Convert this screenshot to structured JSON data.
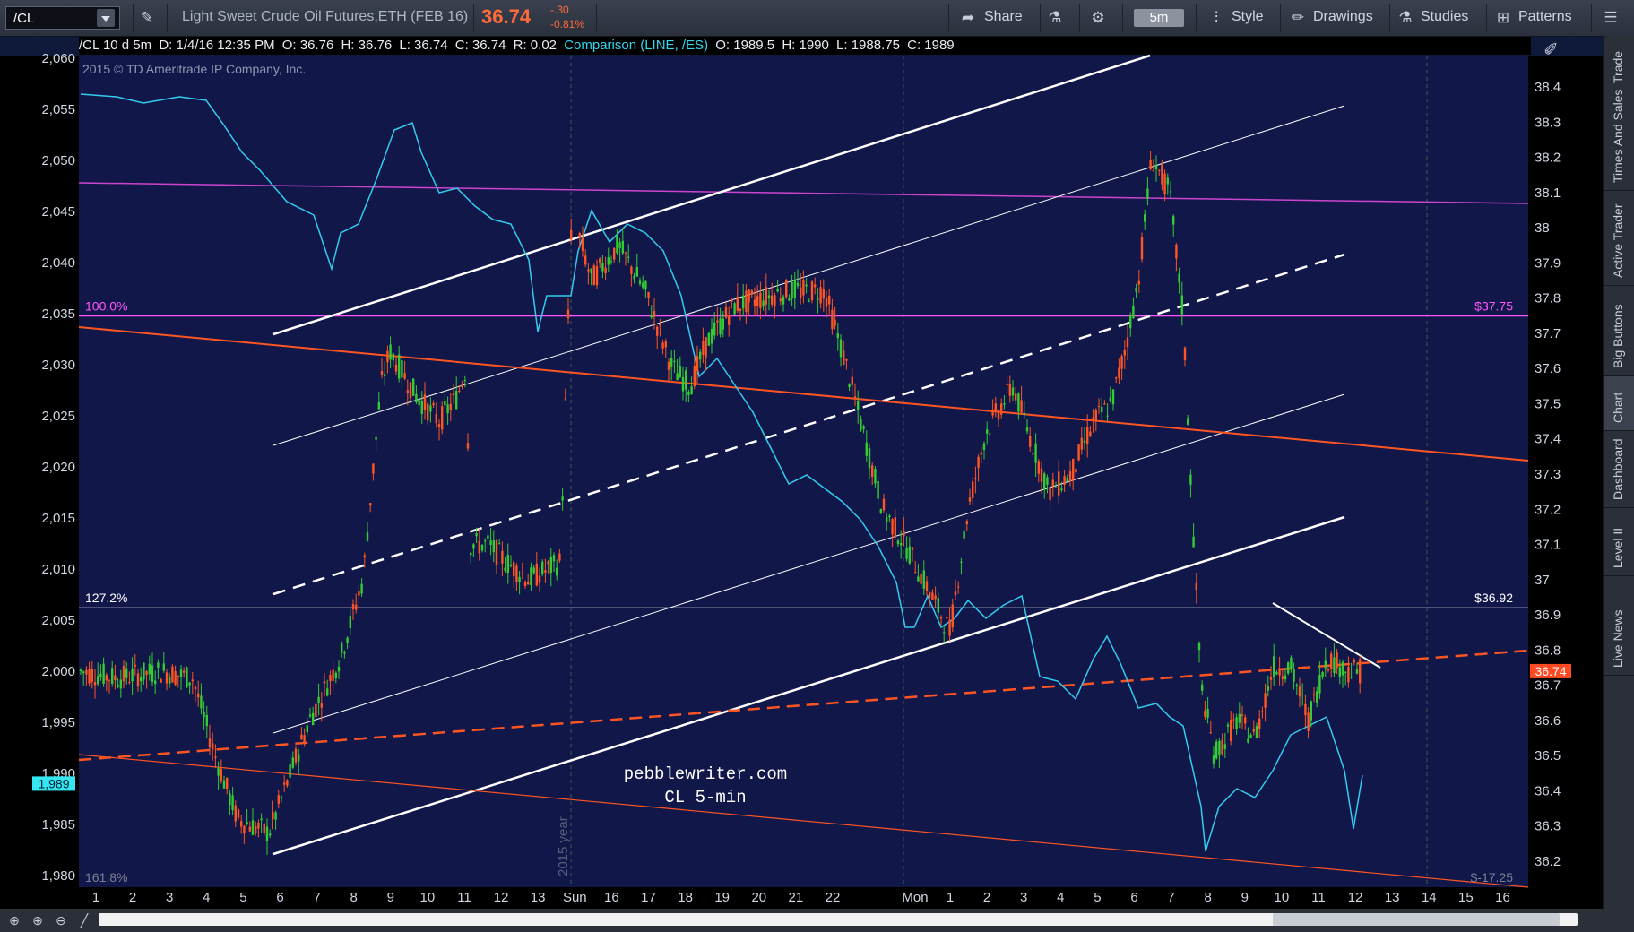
{
  "toolbar": {
    "symbol": "/CL",
    "description": "Light Sweet Crude Oil Futures,ETH (FEB 16)",
    "last_price": "36.74",
    "net_change": "-.30",
    "pct_change": "-0.81%",
    "share_label": "Share",
    "timeframe": "5m",
    "style_label": "Style",
    "drawings_label": "Drawings",
    "studies_label": "Studies",
    "patterns_label": "Patterns",
    "icons": [
      "pencil-icon",
      "flask-icon",
      "gear-icon",
      "share-icon",
      "menu-icon"
    ]
  },
  "infobar": {
    "symbol": "/CL 10 d 5m",
    "date": "D: 1/4/16 12:35 PM",
    "open": "O: 36.76",
    "high": "H: 36.76",
    "low": "L: 36.74",
    "close": "C: 36.74",
    "range": "R: 0.02",
    "comparison": "Comparison (LINE, /ES)",
    "cmp_open": "O: 1989.5",
    "cmp_high": "H: 1990",
    "cmp_low": "L: 1988.75",
    "cmp_close": "C: 1989"
  },
  "right_rail": {
    "tabs": [
      "Trade",
      "Times And Sales",
      "Active Trader",
      "Big Buttons",
      "Chart",
      "Dashboard",
      "Level II",
      "Live News"
    ],
    "active": "Chart"
  },
  "chart_data": {
    "type": "candlestick",
    "copyright": "2015 © TD Ameritrade IP Company, Inc.",
    "watermark_line1": "pebblewriter.com",
    "watermark_line2": "CL 5-min",
    "year_marker": "2015 year",
    "right_axis": {
      "ticks": [
        "38.4",
        "38.3",
        "38.2",
        "38.1",
        "38",
        "37.9",
        "37.8",
        "37.7",
        "37.6",
        "37.5",
        "37.4",
        "37.3",
        "37.2",
        "37.1",
        "37",
        "36.9",
        "36.8",
        "36.7",
        "36.6",
        "36.5",
        "36.4",
        "36.3",
        "36.2"
      ]
    },
    "left_axis": {
      "ticks": [
        "2,060",
        "2,055",
        "2,050",
        "2,045",
        "2,040",
        "2,035",
        "2,030",
        "2,025",
        "2,020",
        "2,015",
        "2,010",
        "2,005",
        "2,000",
        "1,995",
        "1,990",
        "1,985",
        "1,980"
      ]
    },
    "x_axis": {
      "ticks": [
        "1",
        "2",
        "3",
        "4",
        "5",
        "6",
        "7",
        "8",
        "9",
        "10",
        "11",
        "12",
        "13",
        "Sun",
        "16",
        "17",
        "18",
        "19",
        "20",
        "21",
        "22",
        "Mon",
        "1",
        "2",
        "3",
        "4",
        "5",
        "6",
        "7",
        "8",
        "9",
        "10",
        "11",
        "12",
        "13",
        "14",
        "15",
        "16"
      ]
    },
    "levels": [
      {
        "label_left": "100.0%",
        "label_right": "$37.75",
        "price": 37.75,
        "color": "#ff55ff"
      },
      {
        "label_left": "127.2%",
        "label_right": "$36.92",
        "price": 36.92,
        "color": "#ffffff"
      },
      {
        "label_left": "161.8%",
        "label_right": "$-17.25",
        "price": null,
        "color": "#ff6a3c"
      }
    ],
    "current_price_label": "36.74",
    "comparison_price_label": "1,989",
    "colors": {
      "up": "#33cc33",
      "down": "#ff5522",
      "comparison": "#33ccee",
      "trend": "#ff5522",
      "channel": "#ffffff",
      "magenta": "#cc44cc"
    }
  }
}
